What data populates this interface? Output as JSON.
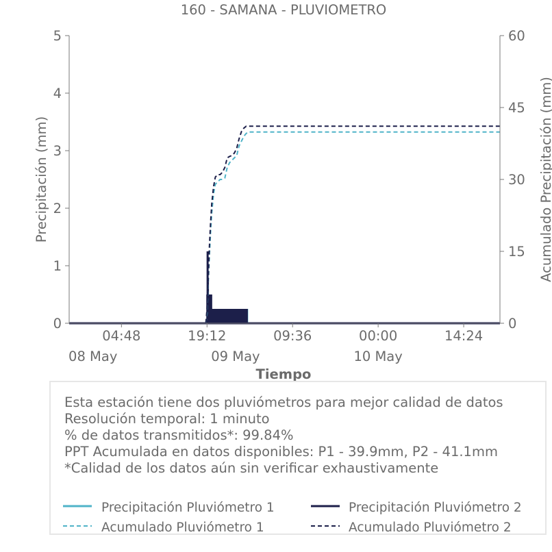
{
  "chart_data": {
    "type": "line",
    "title": "160 - SAMANA - PLUVIOMETRO",
    "xlabel": "Tiempo",
    "ylabel": "Precipitación (mm)",
    "y2label": "Acumulado Precipitación (mm)",
    "ylim": [
      0,
      5
    ],
    "y2lim": [
      0,
      60
    ],
    "yticks": [
      "0",
      "1",
      "2",
      "3",
      "4",
      "5"
    ],
    "y2ticks": [
      "0",
      "15",
      "30",
      "45",
      "60"
    ],
    "xticks": [
      {
        "time": "04:48",
        "date": "08 May"
      },
      {
        "time": "19:12",
        "date": ""
      },
      {
        "time": "09:36",
        "date": "09 May"
      },
      {
        "time": "00:00",
        "date": "10 May"
      },
      {
        "time": "14:24",
        "date": ""
      }
    ],
    "xdates": [
      {
        "label": "08 May",
        "hour": 0
      },
      {
        "label": "09 May",
        "hour": 24
      },
      {
        "label": "10 May",
        "hour": 48
      }
    ],
    "xrange_hours": [
      -4,
      68.5
    ],
    "x_unit": "hours from 08 May 00:00",
    "series": [
      {
        "name": "Precipitación Pluviómetro 1",
        "axis": "left",
        "color": "#4fb3c8",
        "style": "solid",
        "x": [
          -4,
          19.2,
          19.25,
          19.3,
          19.4,
          19.5,
          19.6,
          19.7,
          19.8,
          19.9,
          20.0,
          20.1,
          20.2,
          20.4,
          20.6,
          20.8,
          21.0,
          21.3,
          21.6,
          21.9,
          22.2,
          22.5,
          22.8,
          23.1,
          23.4,
          23.7,
          24.0,
          24.3,
          24.6,
          24.9,
          25.2,
          25.5,
          25.8,
          26.0,
          26.1,
          68.5
        ],
        "values": [
          0,
          0,
          0.25,
          1.0,
          0.5,
          0.5,
          0.25,
          0.5,
          0.25,
          0.25,
          0.25,
          0.25,
          0.25,
          0.25,
          0.25,
          0.25,
          0.25,
          0.25,
          0.25,
          0.25,
          0.25,
          0.25,
          0.25,
          0.25,
          0.25,
          0.25,
          0.25,
          0.25,
          0.25,
          0.25,
          0.25,
          0.25,
          0.25,
          0.25,
          0,
          0
        ]
      },
      {
        "name": "Precipitación Pluviómetro 2",
        "axis": "left",
        "color": "#1c1f4a",
        "style": "solid",
        "x": [
          -4,
          19.2,
          19.25,
          19.3,
          19.35,
          19.4,
          19.45,
          19.5,
          19.55,
          19.6,
          19.7,
          19.8,
          19.9,
          20.0,
          20.1,
          20.2,
          20.3,
          20.5,
          20.7,
          20.9,
          21.1,
          21.3,
          21.5,
          21.7,
          21.9,
          22.1,
          22.3,
          22.5,
          22.7,
          22.9,
          23.1,
          23.3,
          23.5,
          23.7,
          23.9,
          24.1,
          24.3,
          24.5,
          24.7,
          24.9,
          25.1,
          25.3,
          25.5,
          25.7,
          25.9,
          26.0,
          68.5
        ],
        "values": [
          0,
          0,
          0.5,
          1.25,
          0.75,
          0.5,
          0.5,
          0.5,
          0.5,
          0.5,
          0.5,
          0.25,
          0.5,
          0.25,
          0.25,
          0.25,
          0.25,
          0.25,
          0.25,
          0.25,
          0.25,
          0.25,
          0.25,
          0.25,
          0.25,
          0.25,
          0.25,
          0.25,
          0.25,
          0.25,
          0.25,
          0.25,
          0.25,
          0.25,
          0.25,
          0.25,
          0.25,
          0.25,
          0.25,
          0.25,
          0.25,
          0.25,
          0.25,
          0.25,
          0.25,
          0,
          0
        ]
      },
      {
        "name": "Acumulado Pluviómetro 1",
        "axis": "right",
        "color": "#4fb3c8",
        "style": "dashed",
        "x": [
          -4,
          19.0,
          19.2,
          19.4,
          19.6,
          19.8,
          20.0,
          20.3,
          20.6,
          21.0,
          21.4,
          21.8,
          22.2,
          22.6,
          23.0,
          23.4,
          23.8,
          24.2,
          24.6,
          25.0,
          25.4,
          25.8,
          26.2,
          68.5
        ],
        "values": [
          0,
          0,
          2,
          8,
          14,
          19,
          23,
          27,
          29,
          29.5,
          30,
          30,
          30.3,
          32.5,
          33.5,
          34,
          34.5,
          35,
          37,
          38,
          39,
          39.6,
          39.9,
          39.9
        ]
      },
      {
        "name": "Acumulado Pluviómetro 2",
        "axis": "right",
        "color": "#1c1f4a",
        "style": "dashed",
        "x": [
          -4,
          19.0,
          19.2,
          19.4,
          19.6,
          19.8,
          20.0,
          20.3,
          20.6,
          21.0,
          21.4,
          21.8,
          22.2,
          22.6,
          23.0,
          23.4,
          23.8,
          24.2,
          24.6,
          25.0,
          25.4,
          25.8,
          26.2,
          68.5
        ],
        "values": [
          0,
          0,
          3,
          9,
          16,
          21,
          25,
          28.5,
          30.5,
          31,
          31,
          31.5,
          32.5,
          34.5,
          34.8,
          35,
          35.5,
          36.5,
          38.5,
          40,
          40.7,
          41.1,
          41.1,
          41.1
        ]
      }
    ]
  },
  "info": {
    "line1": "Esta estación tiene dos pluviómetros para mejor calidad de datos",
    "line2": "Resolución temporal: 1 minuto",
    "line3": "% de datos transmitidos*: 99.84%",
    "line4": "PPT Acumulada en datos disponibles: P1 - 39.9mm, P2 - 41.1mm",
    "line5": "*Calidad de los datos aún sin verificar exhaustivamente"
  },
  "legend": {
    "items": [
      {
        "label": "Precipitación Pluviómetro 1",
        "color": "#4fb3c8",
        "style": "solid"
      },
      {
        "label": "Precipitación Pluviómetro 2",
        "color": "#1c1f4a",
        "style": "solid"
      },
      {
        "label": "Acumulado Pluviómetro 1",
        "color": "#4fb3c8",
        "style": "dashed"
      },
      {
        "label": "Acumulado Pluviómetro 2",
        "color": "#1c1f4a",
        "style": "dashed"
      }
    ]
  }
}
